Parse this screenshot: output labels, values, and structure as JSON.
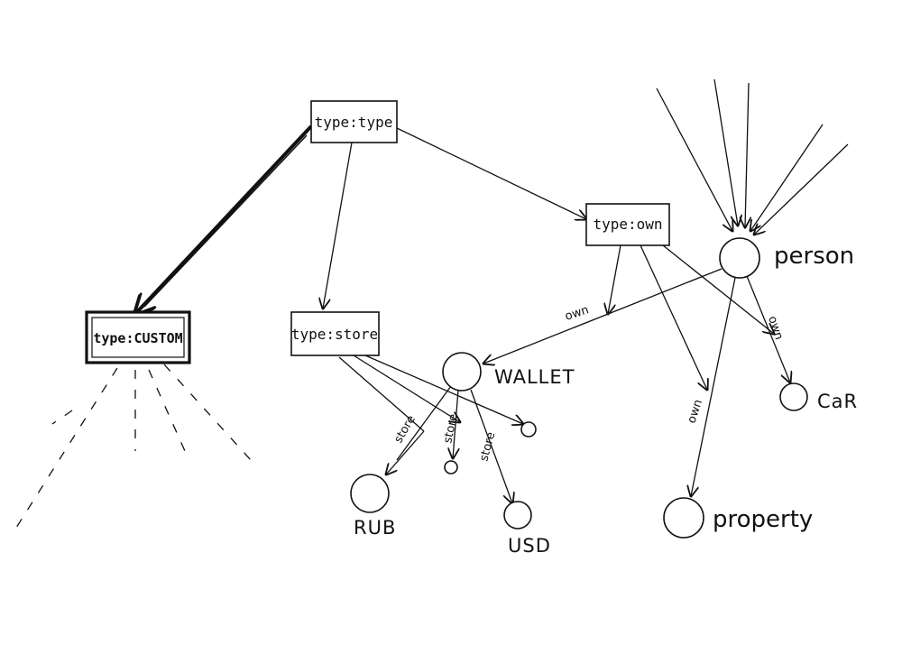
{
  "diagram": {
    "nodes": {
      "type_type": "type:type",
      "type_custom": "type:CUSTOM",
      "type_store": "type:store",
      "type_own": "type:own",
      "person": "person",
      "wallet": "WALLET",
      "rub": "RUB",
      "usd": "USD",
      "car": "CaR",
      "property": "property"
    },
    "edge_labels": {
      "own_wallet": "own",
      "own_car": "own",
      "own_property": "own",
      "store_rub": "store",
      "store_small": "store",
      "store_usd": "store"
    }
  }
}
